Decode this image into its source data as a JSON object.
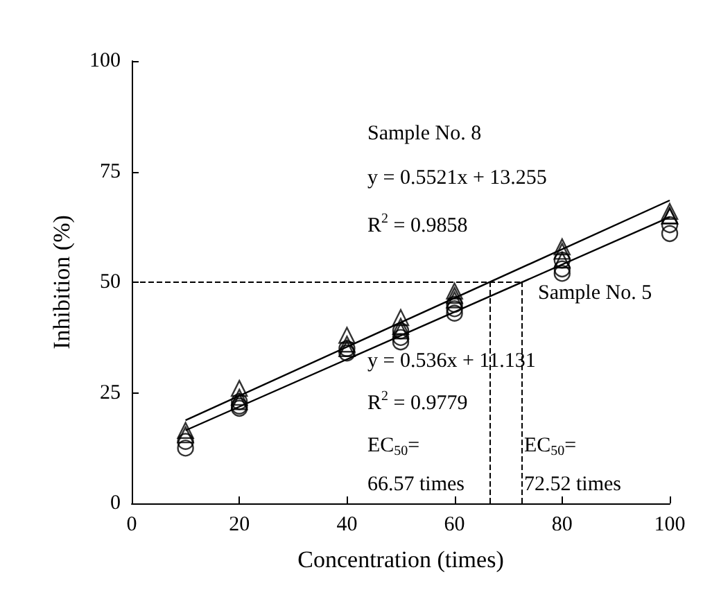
{
  "chart_data": {
    "type": "scatter",
    "xlabel": "Concentration (times)",
    "ylabel": "Inhibition (%)",
    "xlim": [
      0,
      100
    ],
    "xticks": [
      0,
      20,
      40,
      60,
      80,
      100
    ],
    "ylim": [
      0,
      100
    ],
    "yticks": [
      0,
      25,
      50,
      75,
      100
    ],
    "grid": false,
    "series": [
      {
        "marker": "triangle",
        "color": "#000000",
        "x": [
          10,
          10,
          20,
          20,
          20,
          40,
          40,
          40,
          50,
          50,
          50,
          60,
          60,
          60,
          80,
          80,
          80,
          100,
          100,
          100
        ],
        "values": [
          16.5,
          15.5,
          26,
          24,
          23,
          38,
          36,
          35,
          42,
          40,
          39,
          48,
          47,
          46,
          58,
          57,
          55,
          66,
          65,
          65
        ]
      },
      {
        "marker": "circle",
        "color": "#000000",
        "x": [
          10,
          10,
          20,
          20,
          20,
          40,
          40,
          50,
          50,
          50,
          60,
          60,
          60,
          80,
          80,
          80,
          100,
          100
        ],
        "values": [
          14,
          12.5,
          23,
          22,
          21.5,
          35,
          34,
          39,
          37.5,
          36.5,
          45,
          44,
          43,
          55,
          53,
          52,
          63,
          61
        ]
      },
      {
        "type": "line",
        "marker": "none",
        "color": "#000000",
        "x": [
          10,
          100
        ],
        "values": [
          18.8,
          68.5
        ]
      },
      {
        "type": "line",
        "marker": "none",
        "color": "#000000",
        "x": [
          10,
          100
        ],
        "values": [
          16.5,
          64.7
        ]
      }
    ],
    "ref_lines": [
      {
        "axis": "y",
        "value": 50,
        "line_style": "dashed",
        "color": "#000000"
      },
      {
        "axis": "x",
        "value": 66.57,
        "line_style": "dashed",
        "color": "#000000"
      },
      {
        "axis": "x",
        "value": 72.52,
        "line_style": "dashed",
        "color": "#000000"
      }
    ],
    "annotations": [
      "Sample No. 8",
      "y = 0.5521x + 13.255",
      "R$^{2}$ = 0.9858",
      "Sample No. 5",
      "y = 0.536x + 11.131",
      "R$^{2}$ = 0.9779",
      "EC$_{50}$=",
      "66.57 times",
      "EC$_{50}$=",
      "72.52 times"
    ]
  }
}
